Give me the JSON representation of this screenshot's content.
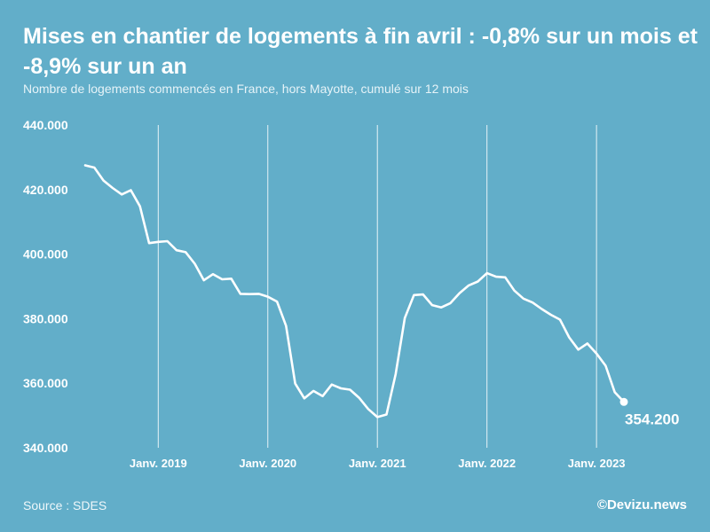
{
  "chart_data": {
    "type": "line",
    "title": "Mises en chantier de logements à fin avril : -0,8% sur un mois et -8,9% sur un an",
    "subtitle": "Nombre de logements commencés en France, hors Mayotte, cumulé sur 12 mois",
    "xlabel": "",
    "ylabel": "",
    "ylim": [
      340000,
      440000
    ],
    "y_ticks": [
      {
        "value": 440000,
        "label": "440.000"
      },
      {
        "value": 420000,
        "label": "420.000"
      },
      {
        "value": 400000,
        "label": "400.000"
      },
      {
        "value": 380000,
        "label": "380.000"
      },
      {
        "value": 360000,
        "label": "360.000"
      },
      {
        "value": 340000,
        "label": "340.000"
      }
    ],
    "x_range": [
      "2018-05",
      "2023-04"
    ],
    "x_ticks": [
      {
        "value": "2019-01",
        "label": "Janv. 2019"
      },
      {
        "value": "2020-01",
        "label": "Janv. 2020"
      },
      {
        "value": "2021-01",
        "label": "Janv. 2021"
      },
      {
        "value": "2022-01",
        "label": "Janv. 2022"
      },
      {
        "value": "2023-01",
        "label": "Janv. 2023"
      }
    ],
    "grid": "vertical-at-january",
    "series": [
      {
        "color": "#ffffff",
        "x": [
          "2018-05",
          "2018-06",
          "2018-07",
          "2018-08",
          "2018-09",
          "2018-10",
          "2018-11",
          "2018-12",
          "2019-01",
          "2019-02",
          "2019-03",
          "2019-04",
          "2019-05",
          "2019-06",
          "2019-07",
          "2019-08",
          "2019-09",
          "2019-10",
          "2019-11",
          "2019-12",
          "2020-01",
          "2020-02",
          "2020-03",
          "2020-04",
          "2020-05",
          "2020-06",
          "2020-07",
          "2020-08",
          "2020-09",
          "2020-10",
          "2020-11",
          "2020-12",
          "2021-01",
          "2021-02",
          "2021-03",
          "2021-04",
          "2021-05",
          "2021-06",
          "2021-07",
          "2021-08",
          "2021-09",
          "2021-10",
          "2021-11",
          "2021-12",
          "2022-01",
          "2022-02",
          "2022-03",
          "2022-04",
          "2022-05",
          "2022-06",
          "2022-07",
          "2022-08",
          "2022-09",
          "2022-10",
          "2022-11",
          "2022-12",
          "2023-01",
          "2023-02",
          "2023-03",
          "2023-04"
        ],
        "values": [
          427500,
          426800,
          422800,
          420500,
          418500,
          419800,
          414800,
          403400,
          403800,
          404000,
          401200,
          400600,
          397000,
          391900,
          393800,
          392200,
          392400,
          387700,
          387600,
          387700,
          386800,
          385300,
          377800,
          359900,
          355300,
          357600,
          356000,
          359600,
          358400,
          358000,
          355500,
          352000,
          349500,
          350300,
          362800,
          380200,
          387300,
          387500,
          384200,
          383500,
          384800,
          387900,
          390300,
          391500,
          394100,
          393000,
          392800,
          388700,
          386200,
          385000,
          383000,
          381200,
          379700,
          374200,
          370400,
          372300,
          369200,
          365400,
          357200,
          354200
        ]
      }
    ],
    "annotations": [
      {
        "x": "2023-04",
        "value": 354200,
        "label": "354.200"
      }
    ]
  },
  "footer": {
    "source": "Source : SDES",
    "credit": "©Devizu.news"
  }
}
